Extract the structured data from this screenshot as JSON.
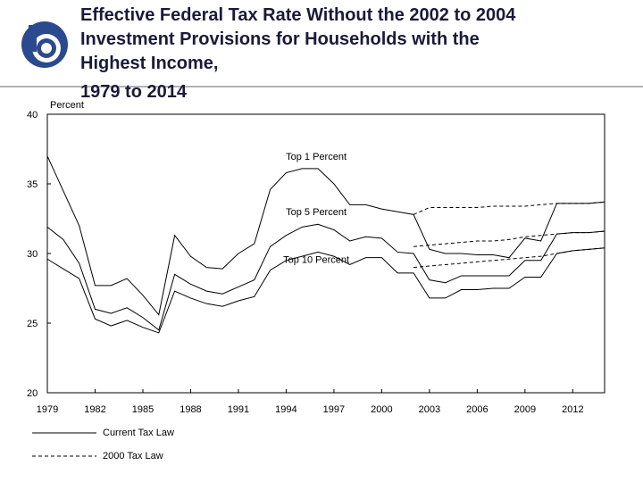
{
  "chart_data": {
    "type": "line",
    "title_lines": [
      "Effective Federal Tax Rate Without the 2002 to 2004",
      "Investment Provisions for Households with the",
      "Highest Income,",
      "1979 to 2014"
    ],
    "y_label": "Percent",
    "x": [
      1979,
      1980,
      1981,
      1982,
      1983,
      1984,
      1985,
      1986,
      1987,
      1988,
      1989,
      1990,
      1991,
      1992,
      1993,
      1994,
      1995,
      1996,
      1997,
      1998,
      1999,
      2000,
      2001,
      2002,
      2003,
      2004,
      2005,
      2006,
      2007,
      2008,
      2009,
      2010,
      2011,
      2012,
      2013,
      2014
    ],
    "xlim": [
      1979,
      2014
    ],
    "xticks": [
      1979,
      1982,
      1985,
      1988,
      1991,
      1994,
      1997,
      2000,
      2003,
      2006,
      2009,
      2012
    ],
    "ylim": [
      20,
      40
    ],
    "yticks": [
      20,
      25,
      30,
      35,
      40
    ],
    "color": "#000000",
    "groups": [
      {
        "name": "Top 1 Percent",
        "current": [
          37.0,
          34.5,
          32.0,
          27.7,
          27.7,
          28.2,
          27.0,
          25.6,
          31.3,
          29.8,
          29.0,
          28.9,
          30.0,
          30.7,
          34.6,
          35.8,
          36.1,
          36.1,
          35.0,
          33.5,
          33.5,
          33.2,
          33.0,
          32.8,
          30.3,
          30.0,
          30.0,
          29.9,
          29.9,
          29.7,
          31.1,
          30.9,
          33.6,
          33.6,
          33.6,
          33.7
        ],
        "law2000": [
          null,
          null,
          null,
          null,
          null,
          null,
          null,
          null,
          null,
          null,
          null,
          null,
          null,
          null,
          null,
          null,
          null,
          null,
          null,
          null,
          null,
          null,
          null,
          32.8,
          33.3,
          33.3,
          33.3,
          33.3,
          33.4,
          33.4,
          33.4,
          33.5,
          33.6,
          33.6,
          33.6,
          33.7
        ]
      },
      {
        "name": "Top 5 Percent",
        "current": [
          31.9,
          31.0,
          29.3,
          26.0,
          25.7,
          26.1,
          25.4,
          24.5,
          28.5,
          27.8,
          27.3,
          27.1,
          27.6,
          28.1,
          30.5,
          31.3,
          31.9,
          32.1,
          31.7,
          30.9,
          31.2,
          31.1,
          30.1,
          30.0,
          28.1,
          27.9,
          28.4,
          28.4,
          28.4,
          28.4,
          29.5,
          29.5,
          31.4,
          31.5,
          31.5,
          31.6
        ],
        "law2000": [
          null,
          null,
          null,
          null,
          null,
          null,
          null,
          null,
          null,
          null,
          null,
          null,
          null,
          null,
          null,
          null,
          null,
          null,
          null,
          null,
          null,
          null,
          null,
          30.5,
          30.6,
          30.7,
          30.8,
          30.9,
          30.9,
          31.0,
          31.2,
          31.3,
          31.4,
          31.5,
          31.5,
          31.6
        ]
      },
      {
        "name": "Top 10 Percent",
        "current": [
          29.6,
          28.9,
          28.2,
          25.3,
          24.8,
          25.2,
          24.7,
          24.3,
          27.3,
          26.8,
          26.4,
          26.2,
          26.6,
          26.9,
          28.8,
          29.5,
          29.8,
          30.1,
          29.8,
          29.2,
          29.7,
          29.7,
          28.6,
          28.6,
          26.8,
          26.8,
          27.4,
          27.4,
          27.5,
          27.5,
          28.3,
          28.3,
          30.0,
          30.2,
          30.3,
          30.4
        ],
        "law2000": [
          null,
          null,
          null,
          null,
          null,
          null,
          null,
          null,
          null,
          null,
          null,
          null,
          null,
          null,
          null,
          null,
          null,
          null,
          null,
          null,
          null,
          null,
          null,
          29.0,
          29.1,
          29.2,
          29.3,
          29.4,
          29.5,
          29.6,
          29.7,
          29.8,
          30.0,
          30.2,
          30.3,
          30.4
        ]
      }
    ],
    "legend": [
      {
        "label": "Current Tax Law",
        "style": "solid"
      },
      {
        "label": "2000 Tax Law",
        "style": "dashed"
      }
    ]
  }
}
